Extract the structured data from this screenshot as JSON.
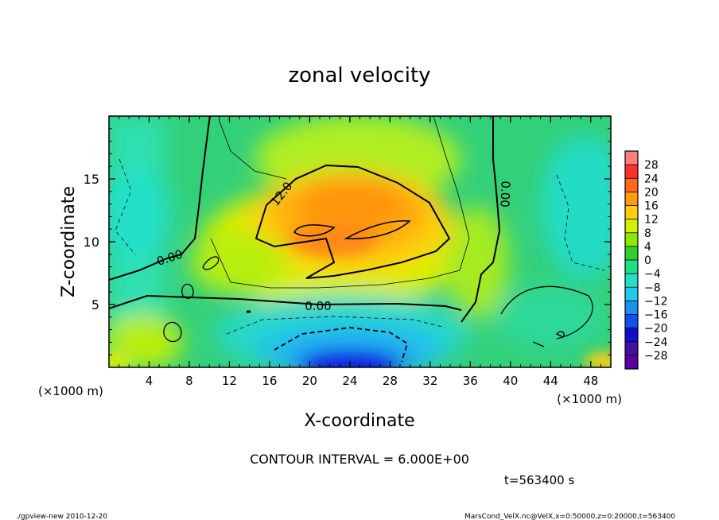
{
  "chart_data": {
    "type": "heatmap",
    "title": "zonal velocity",
    "xlabel": "X-coordinate",
    "ylabel": "Z-coordinate",
    "x_units_left": "(×1000 m)",
    "x_units_right": "(×1000 m)",
    "xlim": [
      0,
      50
    ],
    "ylim": [
      0,
      20
    ],
    "x_ticks": [
      "4",
      "8",
      "12",
      "16",
      "20",
      "24",
      "28",
      "32",
      "36",
      "40",
      "44",
      "48"
    ],
    "x_tick_values": [
      4,
      8,
      12,
      16,
      20,
      24,
      28,
      32,
      36,
      40,
      44,
      48
    ],
    "y_ticks": [
      "5",
      "10",
      "15"
    ],
    "y_tick_values": [
      5,
      10,
      15
    ],
    "contour_interval_text": "CONTOUR INTERVAL = 6.000E+00",
    "contour_labels": [
      "12.0",
      "0.00",
      "0.00",
      "0.00"
    ],
    "time_text": "t=563400 s",
    "footer_left": "./gpview-new  2010-12-20",
    "footer_right": "MarsCond_VelX.nc@VelX,x=0:50000,z=0:20000,t=563400",
    "colorbar": {
      "labels": [
        "28",
        "24",
        "20",
        "16",
        "12",
        "8",
        "4",
        "0",
        "−4",
        "−8",
        "−12",
        "−16",
        "−20",
        "−24",
        "−28"
      ],
      "values": [
        28,
        24,
        20,
        16,
        12,
        8,
        4,
        0,
        -4,
        -8,
        -12,
        -16,
        -20,
        -24,
        -28
      ],
      "colors": [
        "#ff7f7f",
        "#ff3030",
        "#ff6a1a",
        "#ff9c10",
        "#ffcc10",
        "#d4f000",
        "#8ee800",
        "#33cc33",
        "#22dd88",
        "#22e0c8",
        "#22c8ee",
        "#2090ee",
        "#1050ee",
        "#1010cc",
        "#4010a0",
        "#5a00a0"
      ]
    },
    "features": [
      {
        "kind": "max",
        "x": 24,
        "z": 12,
        "value": 20
      },
      {
        "kind": "min",
        "x": 24,
        "z": 0.5,
        "value": -22
      }
    ]
  }
}
